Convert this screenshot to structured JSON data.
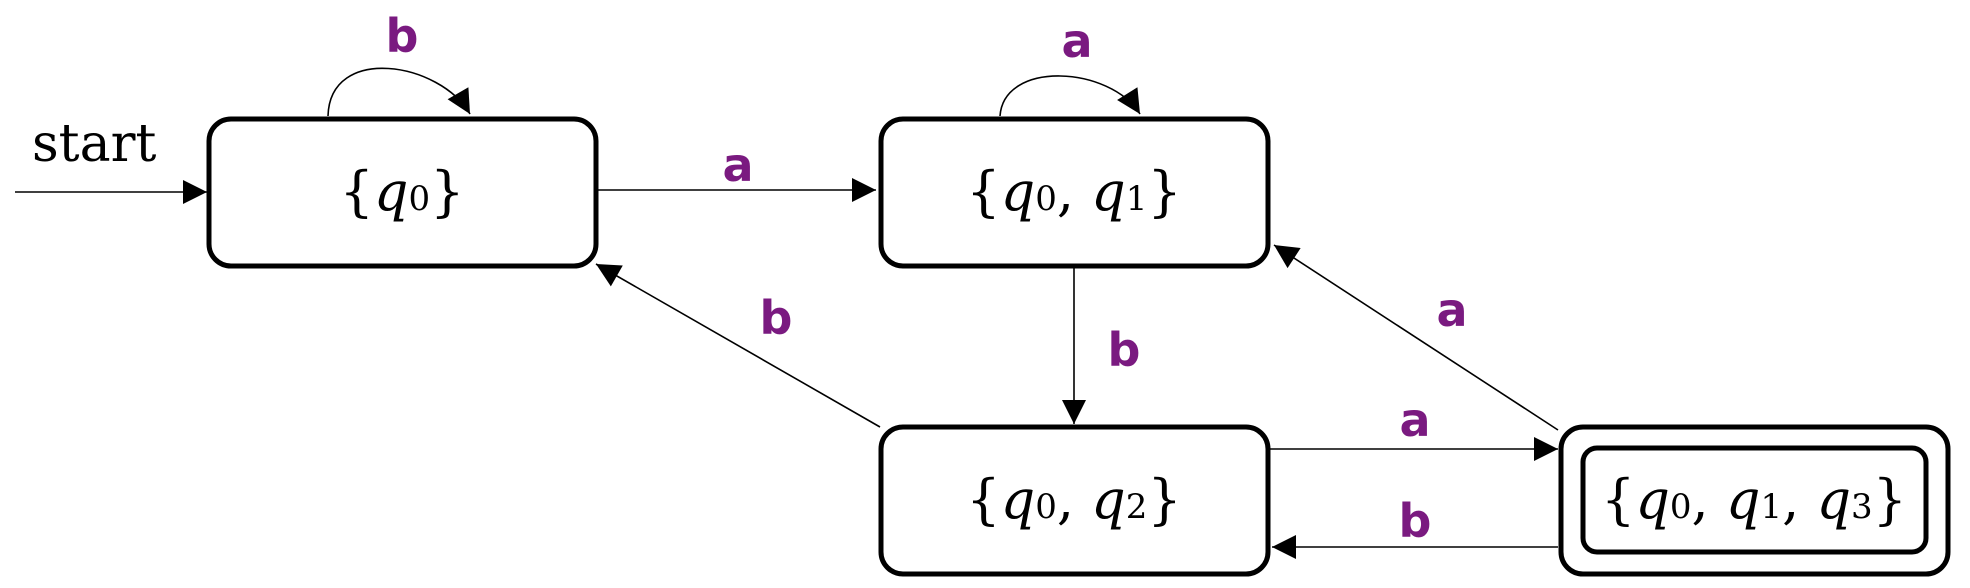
{
  "colors": {
    "edge_label": "#7a1a80",
    "stroke": "#000000"
  },
  "start": {
    "label": "start"
  },
  "states": [
    {
      "id": "q0",
      "accepting": false,
      "subscripts": [
        "0"
      ]
    },
    {
      "id": "q0q1",
      "accepting": false,
      "subscripts": [
        "0",
        "1"
      ]
    },
    {
      "id": "q0q2",
      "accepting": false,
      "subscripts": [
        "0",
        "2"
      ]
    },
    {
      "id": "q0q1q3",
      "accepting": true,
      "subscripts": [
        "0",
        "1",
        "3"
      ]
    }
  ],
  "transitions": [
    {
      "from": "q0",
      "to": "q0",
      "symbol": "b"
    },
    {
      "from": "q0",
      "to": "q0q1",
      "symbol": "a"
    },
    {
      "from": "q0q1",
      "to": "q0q1",
      "symbol": "a"
    },
    {
      "from": "q0q1",
      "to": "q0q2",
      "symbol": "b"
    },
    {
      "from": "q0q2",
      "to": "q0",
      "symbol": "b"
    },
    {
      "from": "q0q2",
      "to": "q0q1q3",
      "symbol": "a"
    },
    {
      "from": "q0q1q3",
      "to": "q0q1",
      "symbol": "a"
    },
    {
      "from": "q0q1q3",
      "to": "q0q2",
      "symbol": "b"
    }
  ]
}
